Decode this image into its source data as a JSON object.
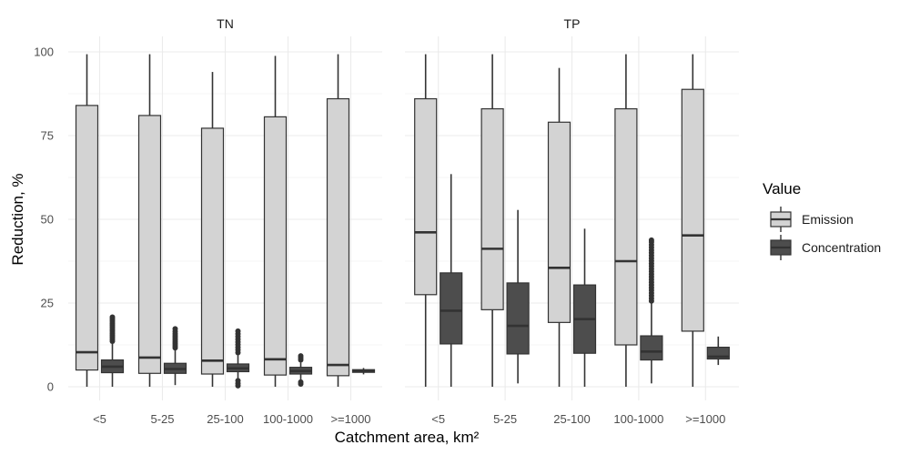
{
  "chart_data": {
    "type": "boxplot",
    "xlabel": "Catchment area, km²",
    "ylabel": "Reduction, %",
    "ylim": [
      0,
      100
    ],
    "yticks": [
      0,
      25,
      50,
      75,
      100
    ],
    "categories": [
      "<5",
      "5-25",
      "25-100",
      "100-1000",
      ">=1000"
    ],
    "grid": true,
    "legend": {
      "title": "Value",
      "position": "right",
      "entries": [
        {
          "name": "Emission",
          "color": "#d3d3d3"
        },
        {
          "name": "Concentration",
          "color": "#4d4d4d"
        }
      ]
    },
    "facets": [
      {
        "title": "TN",
        "series": [
          {
            "name": "Emission",
            "color": "#d3d3d3",
            "boxes": [
              {
                "min": 0,
                "q1": 5,
                "median": 10.3,
                "q3": 84,
                "max": 99.3,
                "outliers": []
              },
              {
                "min": 0,
                "q1": 4,
                "median": 8.7,
                "q3": 81,
                "max": 99.3,
                "outliers": []
              },
              {
                "min": 0,
                "q1": 3.8,
                "median": 7.8,
                "q3": 77.2,
                "max": 94,
                "outliers": []
              },
              {
                "min": 0,
                "q1": 3.5,
                "median": 8.2,
                "q3": 80.6,
                "max": 98.8,
                "outliers": []
              },
              {
                "min": 0,
                "q1": 3.3,
                "median": 6.5,
                "q3": 86,
                "max": 99.3,
                "outliers": []
              }
            ]
          },
          {
            "name": "Concentration",
            "color": "#4d4d4d",
            "boxes": [
              {
                "min": 0,
                "q1": 4.2,
                "median": 6,
                "q3": 8,
                "max": 13.2,
                "outliers": [
                  13.6,
                  14.2,
                  14.8,
                  15.4,
                  16,
                  16.6,
                  17.2,
                  17.8,
                  18.4,
                  19,
                  19.6,
                  20.2,
                  20.8
                ]
              },
              {
                "min": 0.5,
                "q1": 4,
                "median": 5.3,
                "q3": 7,
                "max": 11,
                "outliers": [
                  11.6,
                  12.2,
                  12.8,
                  13.4,
                  14,
                  14.6,
                  15.2,
                  15.8,
                  16.5,
                  17.3
                ]
              },
              {
                "min": 0,
                "q1": 4.5,
                "median": 5.5,
                "q3": 6.8,
                "max": 9.5,
                "outliers": [
                  0.3,
                  1,
                  1.8,
                  10.2,
                  11,
                  11.8,
                  12.6,
                  13.4,
                  14.2,
                  15,
                  15.8,
                  16.6
                ]
              },
              {
                "min": 2,
                "q1": 3.8,
                "median": 4.7,
                "q3": 5.8,
                "max": 7.2,
                "outliers": [
                  0.8,
                  1.4,
                  8,
                  8.6,
                  9.2
                ]
              },
              {
                "min": 3.7,
                "q1": 4.3,
                "median": 4.7,
                "q3": 5.1,
                "max": 5.6,
                "outliers": []
              }
            ]
          }
        ]
      },
      {
        "title": "TP",
        "series": [
          {
            "name": "Emission",
            "color": "#d3d3d3",
            "boxes": [
              {
                "min": 0,
                "q1": 27.5,
                "median": 46.1,
                "q3": 86,
                "max": 99.3,
                "outliers": []
              },
              {
                "min": 0,
                "q1": 23,
                "median": 41.2,
                "q3": 83,
                "max": 99.3,
                "outliers": []
              },
              {
                "min": 0,
                "q1": 19.2,
                "median": 35.5,
                "q3": 79,
                "max": 95.2,
                "outliers": []
              },
              {
                "min": 0,
                "q1": 12.5,
                "median": 37.5,
                "q3": 83,
                "max": 99.3,
                "outliers": []
              },
              {
                "min": 0,
                "q1": 16.6,
                "median": 45.2,
                "q3": 88.8,
                "max": 99.3,
                "outliers": []
              }
            ]
          },
          {
            "name": "Concentration",
            "color": "#4d4d4d",
            "boxes": [
              {
                "min": 0,
                "q1": 12.8,
                "median": 22.7,
                "q3": 34,
                "max": 63.5,
                "outliers": []
              },
              {
                "min": 1,
                "q1": 9.8,
                "median": 18.2,
                "q3": 31,
                "max": 52.8,
                "outliers": []
              },
              {
                "min": 0,
                "q1": 10,
                "median": 20.2,
                "q3": 30.4,
                "max": 47.2,
                "outliers": []
              },
              {
                "min": 1,
                "q1": 8,
                "median": 10.5,
                "q3": 15.2,
                "max": 25,
                "outliers": [
                  25.6,
                  26.4,
                  27.2,
                  28,
                  28.8,
                  29.6,
                  30.4,
                  31.2,
                  32,
                  32.8,
                  33.6,
                  34.4,
                  35.2,
                  36,
                  36.8,
                  37.6,
                  38.4,
                  39.2,
                  40,
                  40.8,
                  41.6,
                  42.4,
                  43.2,
                  43.8
                ]
              },
              {
                "min": 6.5,
                "q1": 8.3,
                "median": 9,
                "q3": 11.8,
                "max": 15,
                "outliers": []
              }
            ]
          }
        ]
      }
    ]
  }
}
